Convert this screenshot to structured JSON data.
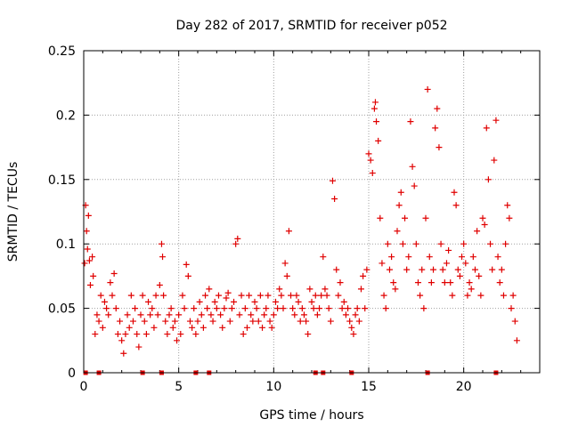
{
  "chart_data": {
    "type": "scatter",
    "title": "Day 282 of 2017, SRMTID for receiver p052",
    "xlabel": "GPS time / hours",
    "ylabel": "SRMTID / TECUs",
    "xlim": [
      0,
      24
    ],
    "ylim": [
      0,
      0.25
    ],
    "xticks": [
      0,
      5,
      10,
      15,
      20
    ],
    "xtick_labels": [
      "0",
      "5",
      "10",
      "15",
      "20"
    ],
    "yticks": [
      0,
      0.05,
      0.1,
      0.15,
      0.2,
      0.25
    ],
    "ytick_labels": [
      "0",
      "0.05",
      "0.1",
      "0.15",
      "0.2",
      "0.25"
    ],
    "grid": true,
    "marker": "plus",
    "color": "#e00000",
    "series": [
      {
        "name": "SRMTID",
        "points": [
          [
            0.05,
            0.085
          ],
          [
            0.1,
            0.13
          ],
          [
            0.15,
            0.11
          ],
          [
            0.2,
            0.096
          ],
          [
            0.25,
            0.122
          ],
          [
            0.3,
            0.087
          ],
          [
            0.35,
            0.068
          ],
          [
            0.45,
            0.09
          ],
          [
            0.5,
            0.075
          ],
          [
            0.6,
            0.03
          ],
          [
            0.7,
            0.045
          ],
          [
            0.8,
            0.04
          ],
          [
            0.9,
            0.06
          ],
          [
            1.0,
            0.035
          ],
          [
            1.1,
            0.055
          ],
          [
            1.2,
            0.05
          ],
          [
            1.3,
            0.045
          ],
          [
            1.4,
            0.07
          ],
          [
            1.5,
            0.06
          ],
          [
            1.6,
            0.077
          ],
          [
            1.7,
            0.05
          ],
          [
            1.8,
            0.03
          ],
          [
            1.9,
            0.04
          ],
          [
            2.0,
            0.025
          ],
          [
            2.1,
            0.015
          ],
          [
            2.2,
            0.03
          ],
          [
            2.3,
            0.045
          ],
          [
            2.4,
            0.035
          ],
          [
            2.5,
            0.06
          ],
          [
            2.6,
            0.04
          ],
          [
            2.7,
            0.05
          ],
          [
            2.8,
            0.03
          ],
          [
            2.9,
            0.02
          ],
          [
            3.0,
            0.045
          ],
          [
            3.1,
            0.06
          ],
          [
            3.2,
            0.04
          ],
          [
            3.3,
            0.03
          ],
          [
            3.4,
            0.055
          ],
          [
            3.5,
            0.045
          ],
          [
            3.6,
            0.05
          ],
          [
            3.7,
            0.035
          ],
          [
            3.8,
            0.06
          ],
          [
            3.9,
            0.045
          ],
          [
            4.0,
            0.068
          ],
          [
            4.1,
            0.1
          ],
          [
            4.15,
            0.09
          ],
          [
            4.2,
            0.06
          ],
          [
            4.3,
            0.04
          ],
          [
            4.4,
            0.03
          ],
          [
            4.5,
            0.045
          ],
          [
            4.6,
            0.05
          ],
          [
            4.7,
            0.035
          ],
          [
            4.8,
            0.04
          ],
          [
            4.9,
            0.025
          ],
          [
            5.0,
            0.045
          ],
          [
            5.1,
            0.03
          ],
          [
            5.2,
            0.06
          ],
          [
            5.3,
            0.05
          ],
          [
            5.4,
            0.084
          ],
          [
            5.5,
            0.075
          ],
          [
            5.6,
            0.04
          ],
          [
            5.7,
            0.035
          ],
          [
            5.8,
            0.05
          ],
          [
            5.9,
            0.03
          ],
          [
            6.0,
            0.04
          ],
          [
            6.1,
            0.055
          ],
          [
            6.2,
            0.045
          ],
          [
            6.3,
            0.035
          ],
          [
            6.4,
            0.06
          ],
          [
            6.5,
            0.05
          ],
          [
            6.6,
            0.065
          ],
          [
            6.7,
            0.045
          ],
          [
            6.8,
            0.04
          ],
          [
            6.9,
            0.055
          ],
          [
            7.0,
            0.05
          ],
          [
            7.1,
            0.06
          ],
          [
            7.2,
            0.045
          ],
          [
            7.3,
            0.035
          ],
          [
            7.4,
            0.05
          ],
          [
            7.5,
            0.058
          ],
          [
            7.6,
            0.062
          ],
          [
            7.7,
            0.04
          ],
          [
            7.8,
            0.05
          ],
          [
            7.9,
            0.055
          ],
          [
            8.0,
            0.1
          ],
          [
            8.1,
            0.104
          ],
          [
            8.2,
            0.045
          ],
          [
            8.3,
            0.06
          ],
          [
            8.4,
            0.03
          ],
          [
            8.5,
            0.05
          ],
          [
            8.6,
            0.035
          ],
          [
            8.7,
            0.06
          ],
          [
            8.8,
            0.045
          ],
          [
            8.9,
            0.04
          ],
          [
            9.0,
            0.055
          ],
          [
            9.1,
            0.05
          ],
          [
            9.2,
            0.04
          ],
          [
            9.3,
            0.06
          ],
          [
            9.4,
            0.035
          ],
          [
            9.5,
            0.045
          ],
          [
            9.6,
            0.05
          ],
          [
            9.7,
            0.06
          ],
          [
            9.8,
            0.04
          ],
          [
            9.9,
            0.035
          ],
          [
            10.0,
            0.045
          ],
          [
            10.1,
            0.055
          ],
          [
            10.2,
            0.05
          ],
          [
            10.3,
            0.065
          ],
          [
            10.4,
            0.06
          ],
          [
            10.5,
            0.05
          ],
          [
            10.6,
            0.085
          ],
          [
            10.7,
            0.075
          ],
          [
            10.8,
            0.11
          ],
          [
            10.9,
            0.06
          ],
          [
            11.0,
            0.05
          ],
          [
            11.1,
            0.045
          ],
          [
            11.2,
            0.06
          ],
          [
            11.3,
            0.055
          ],
          [
            11.4,
            0.04
          ],
          [
            11.5,
            0.05
          ],
          [
            11.6,
            0.045
          ],
          [
            11.7,
            0.04
          ],
          [
            11.8,
            0.03
          ],
          [
            11.9,
            0.065
          ],
          [
            12.0,
            0.055
          ],
          [
            12.1,
            0.05
          ],
          [
            12.2,
            0.06
          ],
          [
            12.3,
            0.045
          ],
          [
            12.4,
            0.05
          ],
          [
            12.5,
            0.06
          ],
          [
            12.6,
            0.09
          ],
          [
            12.7,
            0.065
          ],
          [
            12.8,
            0.06
          ],
          [
            12.9,
            0.05
          ],
          [
            13.0,
            0.04
          ],
          [
            13.1,
            0.149
          ],
          [
            13.2,
            0.135
          ],
          [
            13.3,
            0.08
          ],
          [
            13.4,
            0.06
          ],
          [
            13.5,
            0.07
          ],
          [
            13.6,
            0.05
          ],
          [
            13.7,
            0.055
          ],
          [
            13.8,
            0.045
          ],
          [
            13.9,
            0.05
          ],
          [
            14.0,
            0.04
          ],
          [
            14.1,
            0.035
          ],
          [
            14.2,
            0.03
          ],
          [
            14.3,
            0.045
          ],
          [
            14.4,
            0.05
          ],
          [
            14.5,
            0.04
          ],
          [
            14.6,
            0.065
          ],
          [
            14.7,
            0.075
          ],
          [
            14.8,
            0.05
          ],
          [
            14.9,
            0.08
          ],
          [
            15.0,
            0.17
          ],
          [
            15.1,
            0.165
          ],
          [
            15.2,
            0.155
          ],
          [
            15.3,
            0.205
          ],
          [
            15.35,
            0.21
          ],
          [
            15.4,
            0.195
          ],
          [
            15.5,
            0.18
          ],
          [
            15.6,
            0.12
          ],
          [
            15.7,
            0.085
          ],
          [
            15.8,
            0.06
          ],
          [
            15.9,
            0.05
          ],
          [
            16.0,
            0.1
          ],
          [
            16.1,
            0.08
          ],
          [
            16.2,
            0.09
          ],
          [
            16.3,
            0.07
          ],
          [
            16.4,
            0.065
          ],
          [
            16.5,
            0.11
          ],
          [
            16.6,
            0.13
          ],
          [
            16.7,
            0.14
          ],
          [
            16.8,
            0.1
          ],
          [
            16.9,
            0.12
          ],
          [
            17.0,
            0.08
          ],
          [
            17.1,
            0.09
          ],
          [
            17.2,
            0.195
          ],
          [
            17.3,
            0.16
          ],
          [
            17.4,
            0.145
          ],
          [
            17.5,
            0.1
          ],
          [
            17.6,
            0.07
          ],
          [
            17.7,
            0.06
          ],
          [
            17.8,
            0.08
          ],
          [
            17.9,
            0.05
          ],
          [
            18.0,
            0.12
          ],
          [
            18.1,
            0.22
          ],
          [
            18.2,
            0.09
          ],
          [
            18.3,
            0.07
          ],
          [
            18.4,
            0.08
          ],
          [
            18.5,
            0.19
          ],
          [
            18.6,
            0.205
          ],
          [
            18.7,
            0.175
          ],
          [
            18.8,
            0.1
          ],
          [
            18.9,
            0.08
          ],
          [
            19.0,
            0.07
          ],
          [
            19.1,
            0.085
          ],
          [
            19.2,
            0.095
          ],
          [
            19.3,
            0.07
          ],
          [
            19.4,
            0.06
          ],
          [
            19.5,
            0.14
          ],
          [
            19.6,
            0.13
          ],
          [
            19.7,
            0.08
          ],
          [
            19.8,
            0.075
          ],
          [
            19.9,
            0.09
          ],
          [
            20.0,
            0.1
          ],
          [
            20.1,
            0.085
          ],
          [
            20.2,
            0.06
          ],
          [
            20.3,
            0.07
          ],
          [
            20.4,
            0.065
          ],
          [
            20.5,
            0.09
          ],
          [
            20.6,
            0.08
          ],
          [
            20.7,
            0.11
          ],
          [
            20.8,
            0.075
          ],
          [
            20.9,
            0.06
          ],
          [
            21.0,
            0.12
          ],
          [
            21.1,
            0.115
          ],
          [
            21.2,
            0.19
          ],
          [
            21.3,
            0.15
          ],
          [
            21.4,
            0.1
          ],
          [
            21.5,
            0.08
          ],
          [
            21.6,
            0.165
          ],
          [
            21.7,
            0.196
          ],
          [
            21.8,
            0.09
          ],
          [
            21.9,
            0.07
          ],
          [
            22.0,
            0.08
          ],
          [
            22.1,
            0.06
          ],
          [
            22.2,
            0.1
          ],
          [
            22.3,
            0.13
          ],
          [
            22.4,
            0.12
          ],
          [
            22.5,
            0.05
          ],
          [
            22.6,
            0.06
          ],
          [
            22.7,
            0.04
          ],
          [
            22.8,
            0.025
          ]
        ]
      }
    ],
    "baseline_markers_x": [
      0.1,
      0.8,
      3.1,
      4.1,
      5.9,
      6.6,
      12.2,
      12.6,
      14.1,
      18.1,
      21.7
    ]
  }
}
